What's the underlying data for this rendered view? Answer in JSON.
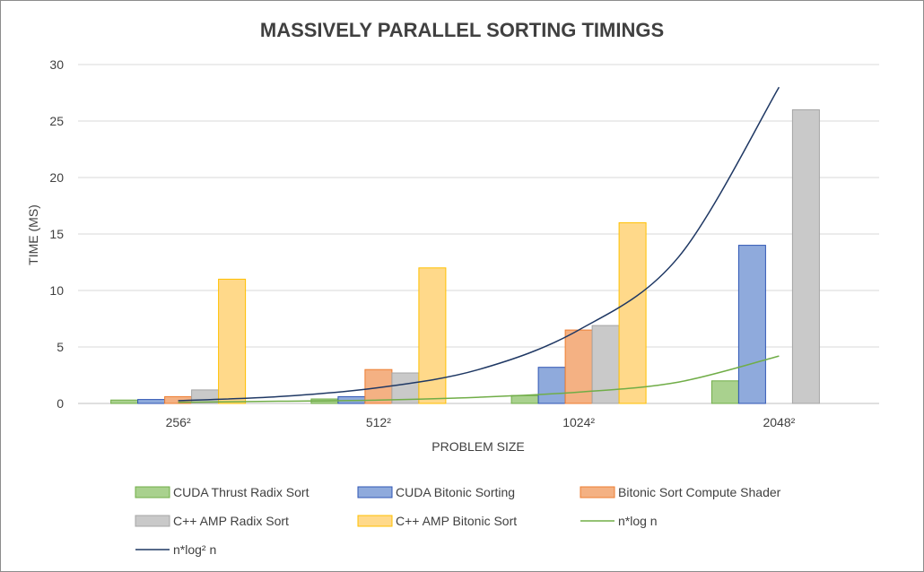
{
  "chart_data": {
    "type": "bar",
    "title": "MASSIVELY PARALLEL SORTING TIMINGS",
    "xlabel": "PROBLEM SIZE",
    "ylabel": "TIME (MS)",
    "categories": [
      "256²",
      "512²",
      "1024²",
      "2048²"
    ],
    "ylim": [
      0,
      30
    ],
    "yticks": [
      0,
      5,
      10,
      15,
      20,
      25,
      30
    ],
    "grid": true,
    "legend_position": "bottom",
    "series": [
      {
        "name": "CUDA Thrust Radix Sort",
        "type": "bar",
        "values": [
          0.3,
          0.4,
          0.7,
          2.0
        ],
        "fill": "#a9d18e",
        "stroke": "#70ad47"
      },
      {
        "name": "CUDA Bitonic Sorting",
        "type": "bar",
        "values": [
          0.35,
          0.6,
          3.2,
          14.0
        ],
        "fill": "#8faadc",
        "stroke": "#2f55b4"
      },
      {
        "name": "Bitonic Sort Compute Shader",
        "type": "bar",
        "values": [
          0.6,
          3.0,
          6.5,
          null
        ],
        "fill": "#f4b183",
        "stroke": "#ed7d31"
      },
      {
        "name": "C++ AMP Radix Sort",
        "type": "bar",
        "values": [
          1.2,
          2.7,
          6.9,
          26.0
        ],
        "fill": "#c9c9c9",
        "stroke": "#a5a5a5"
      },
      {
        "name": "C++ AMP Bitonic Sort",
        "type": "bar",
        "values": [
          11.0,
          12.0,
          16.0,
          null
        ],
        "fill": "#ffd98a",
        "stroke": "#ffc000"
      },
      {
        "name": "n*log n",
        "type": "line",
        "x": [
          0,
          0.5,
          1,
          1.5,
          2,
          2.5,
          3
        ],
        "values": [
          0.1,
          0.2,
          0.3,
          0.55,
          1.0,
          1.9,
          4.2
        ],
        "color": "#70ad47"
      },
      {
        "name": "n*log² n",
        "type": "line",
        "x": [
          0,
          0.5,
          1,
          1.5,
          2,
          2.5,
          3
        ],
        "values": [
          0.25,
          0.6,
          1.4,
          3.0,
          6.5,
          13.0,
          28.0
        ],
        "color": "#1f3864"
      }
    ]
  }
}
